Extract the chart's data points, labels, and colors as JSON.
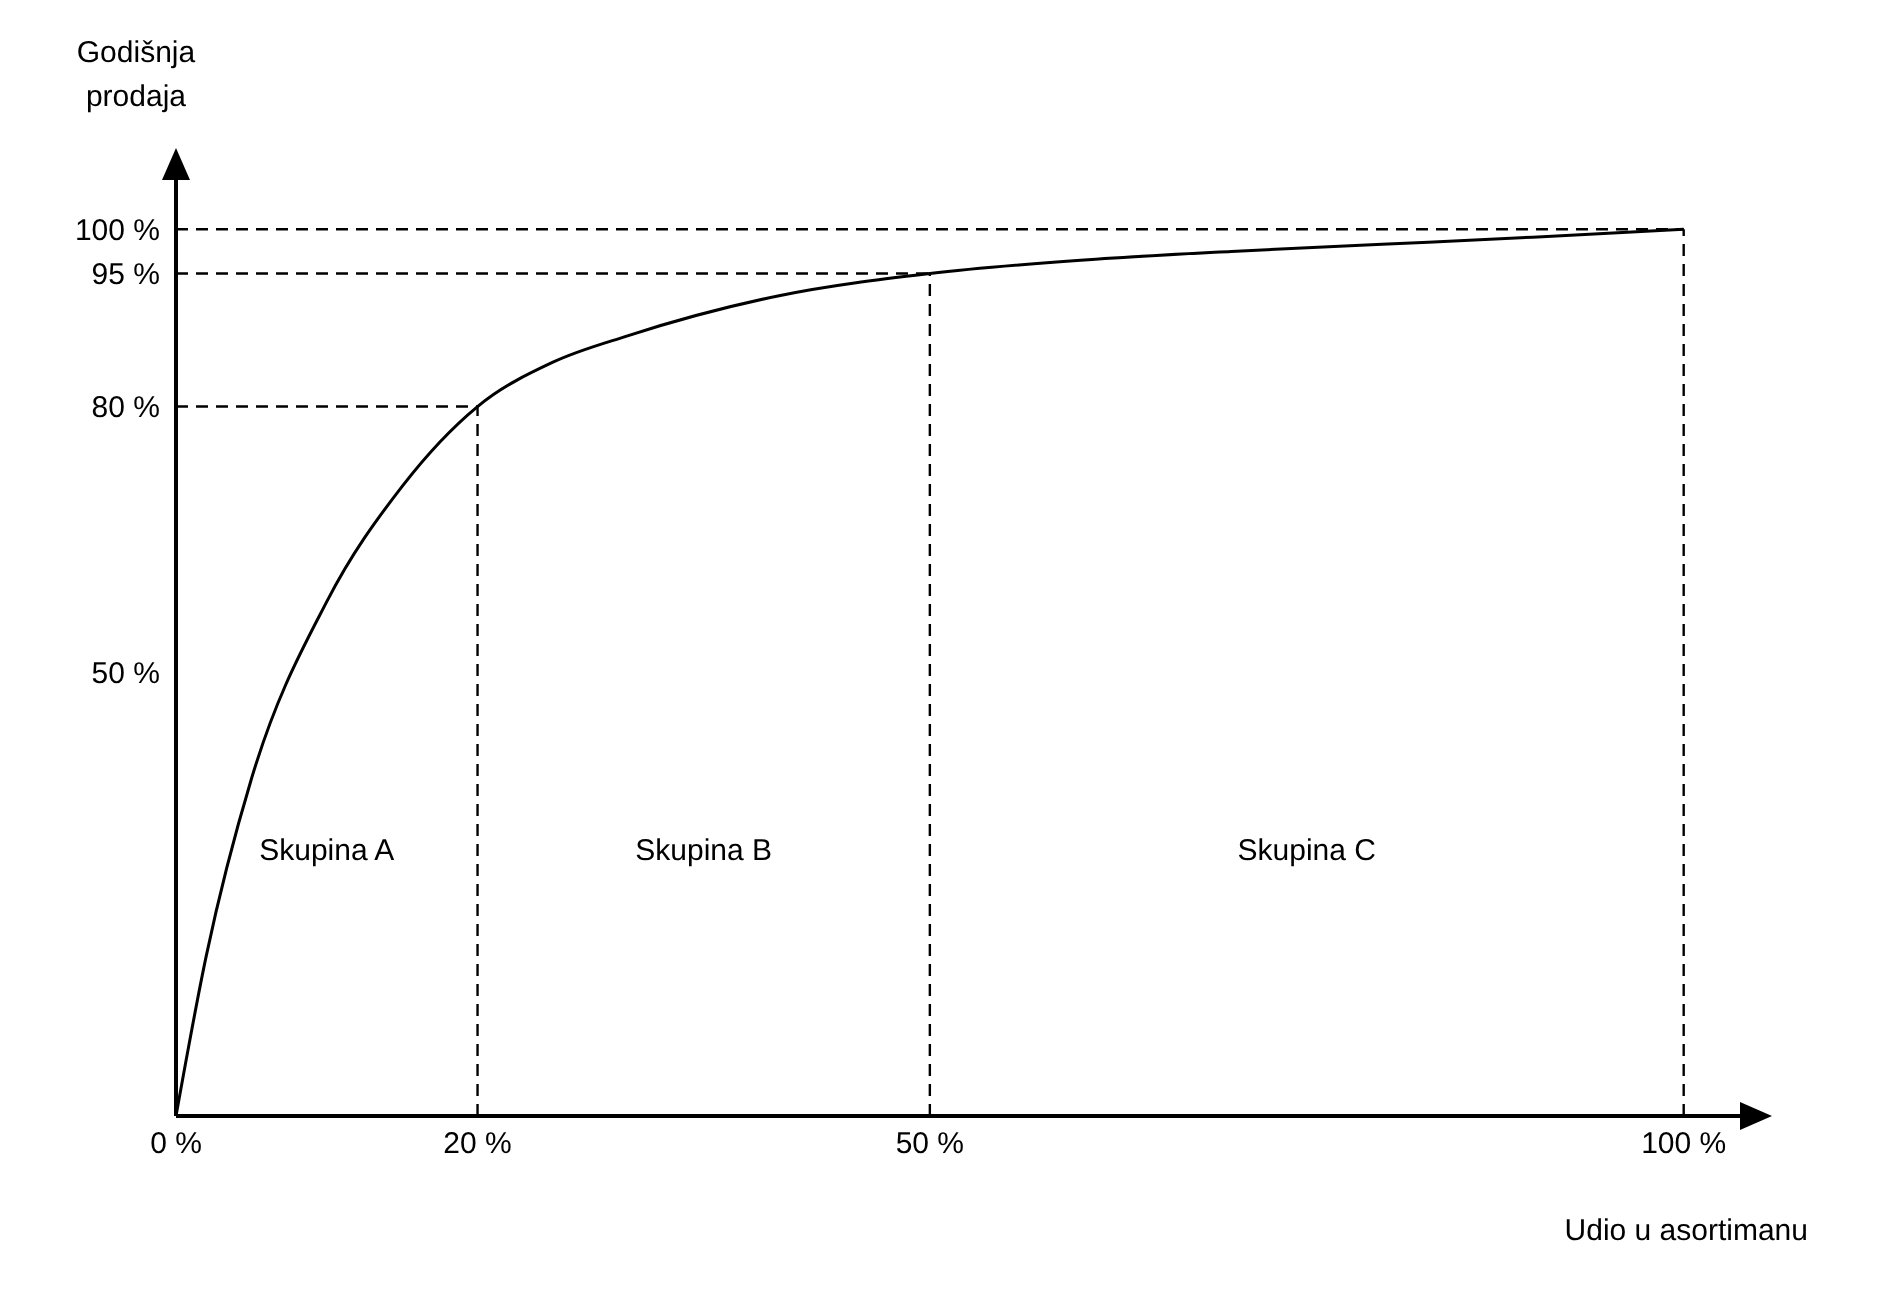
{
  "chart_data": {
    "type": "line",
    "xlabel": "Udio u asortimanu",
    "ylabel": "Godišnja prodaja",
    "x": [
      0,
      2,
      5,
      10,
      15,
      20,
      25,
      30,
      40,
      50,
      60,
      70,
      80,
      90,
      100
    ],
    "series": [
      {
        "color": "#000000",
        "values": [
          0,
          18,
          38,
          58,
          71,
          80,
          85,
          88,
          92.5,
          95,
          96.5,
          97.5,
          98.3,
          99.1,
          100
        ]
      }
    ],
    "xlim": [
      0,
      104
    ],
    "ylim": [
      0,
      106
    ],
    "xticks": [
      {
        "value": 0,
        "label": "0 %"
      },
      {
        "value": 20,
        "label": "20 %"
      },
      {
        "value": 50,
        "label": "50 %"
      },
      {
        "value": 100,
        "label": "100 %"
      }
    ],
    "yticks": [
      {
        "value": 50,
        "label": "50 %"
      },
      {
        "value": 80,
        "label": "80 %"
      },
      {
        "value": 95,
        "label": "95 %"
      },
      {
        "value": 100,
        "label": "100 %"
      }
    ],
    "ref_lines": [
      {
        "axis": "x",
        "value": 20,
        "line_style": "dashed"
      },
      {
        "axis": "x",
        "value": 50,
        "line_style": "dashed"
      },
      {
        "axis": "x",
        "value": 100,
        "line_style": "dashed"
      },
      {
        "axis": "y",
        "value": 80,
        "line_style": "dashed"
      },
      {
        "axis": "y",
        "value": 95,
        "line_style": "dashed"
      },
      {
        "axis": "y",
        "value": 100,
        "line_style": "dashed"
      }
    ],
    "annotations": [
      "Skupina A",
      "Skupina B",
      "Skupina C"
    ],
    "marker": "none",
    "line_style": "solid"
  }
}
